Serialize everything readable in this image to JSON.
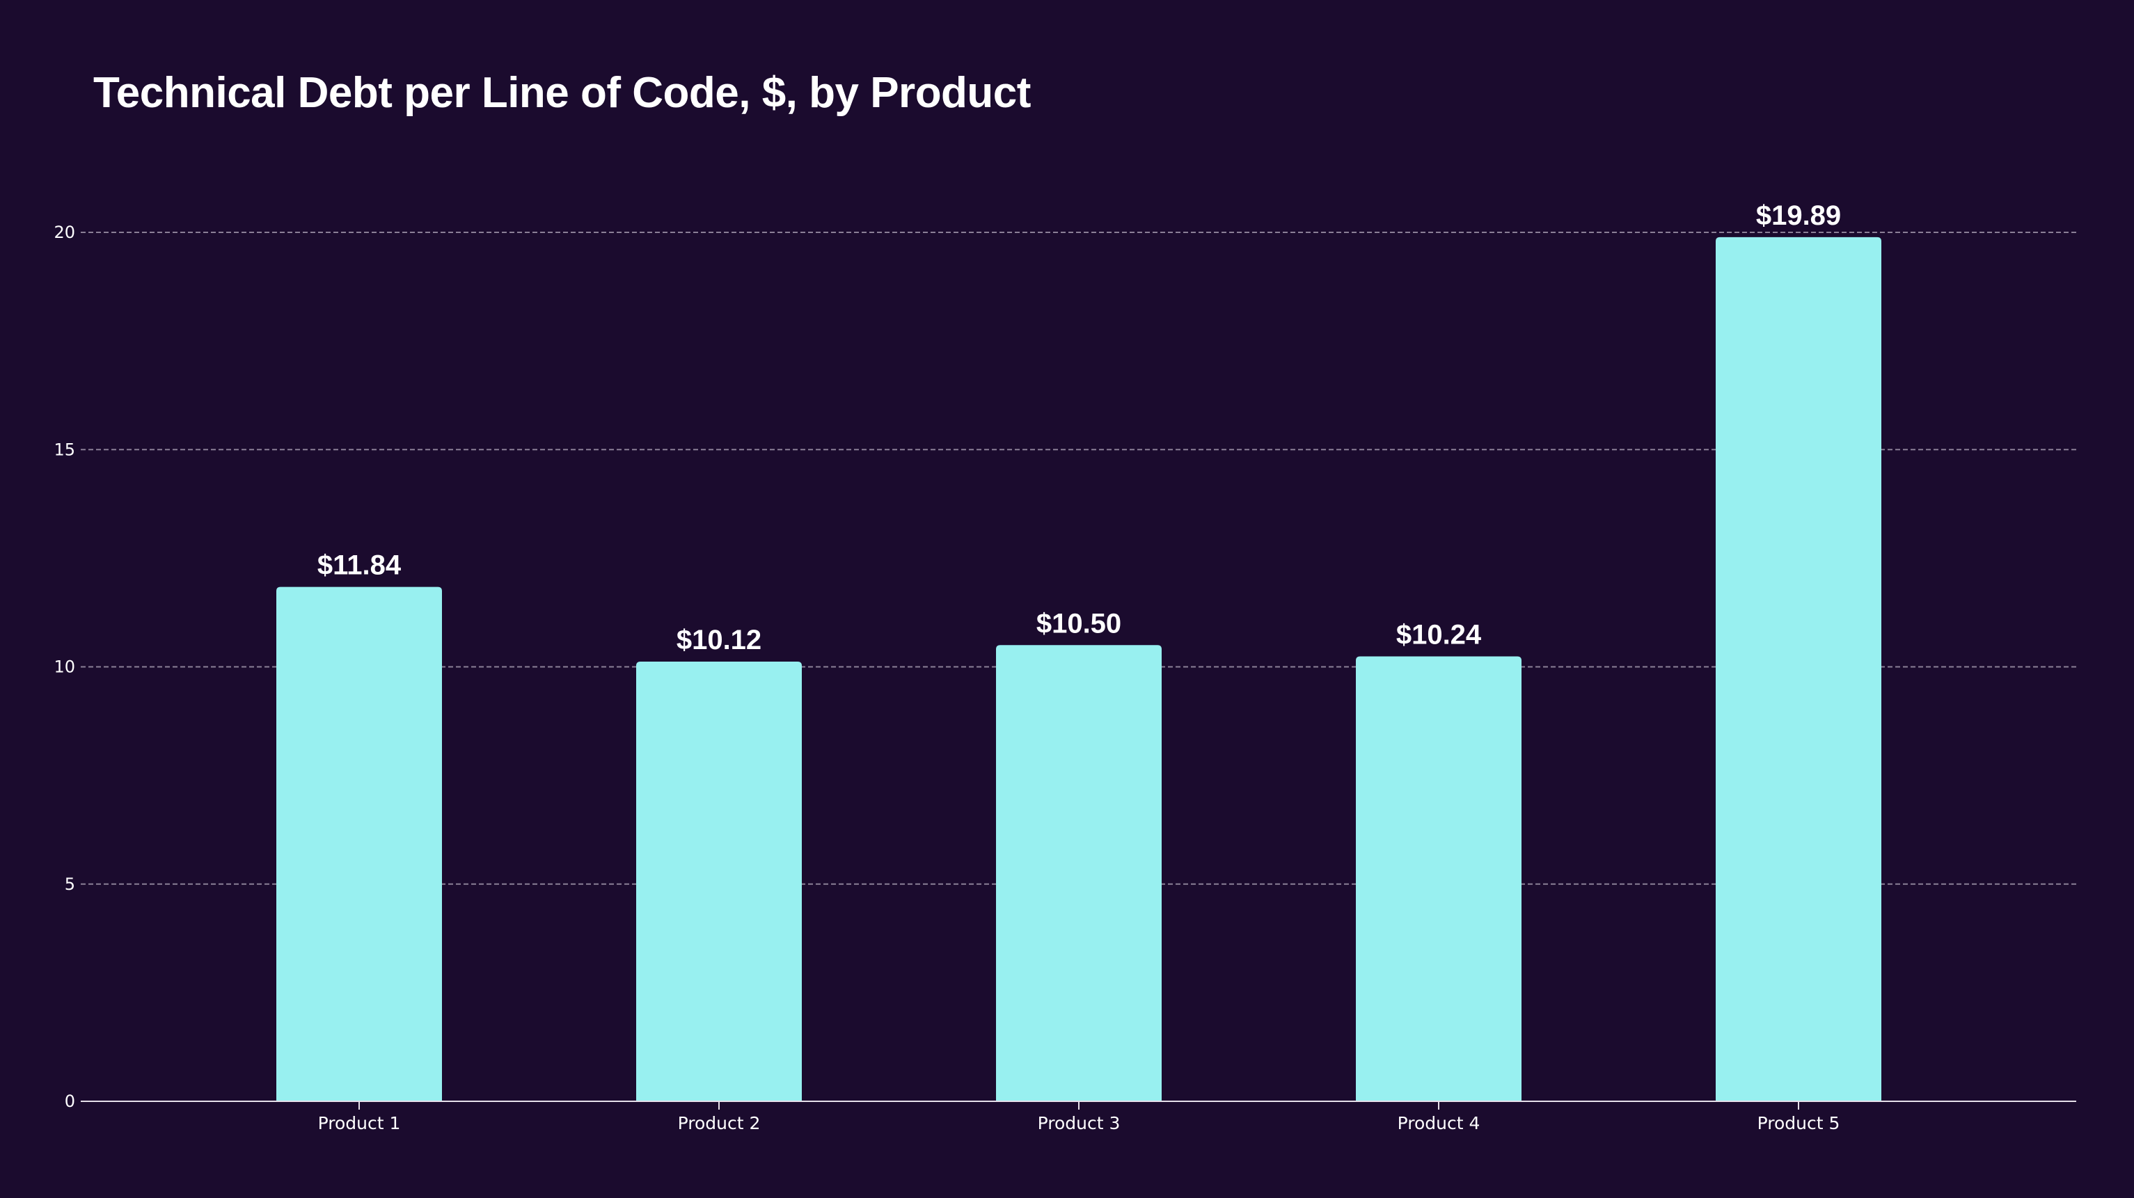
{
  "chart_data": {
    "type": "bar",
    "title": "Technical Debt per Line of Code, $, by Product",
    "xlabel": "",
    "ylabel": "",
    "categories": [
      "Product 1",
      "Product 2",
      "Product 3",
      "Product 4",
      "Product 5"
    ],
    "values": [
      11.84,
      10.12,
      10.5,
      10.24,
      19.89
    ],
    "data_labels": [
      "$11.84",
      "$10.12",
      "$10.50",
      "$10.24",
      "$19.89"
    ],
    "ylim": [
      0,
      20
    ],
    "yticks": [
      0,
      5,
      10,
      15,
      20
    ],
    "grid": true,
    "grid_style": "dashed-horizontal",
    "legend": "none",
    "colors": {
      "background": "#1b0b2e",
      "bar": "#98f0f0",
      "text": "#ffffff",
      "grid": "#8a7f96",
      "axis": "#e6e0ea"
    }
  }
}
